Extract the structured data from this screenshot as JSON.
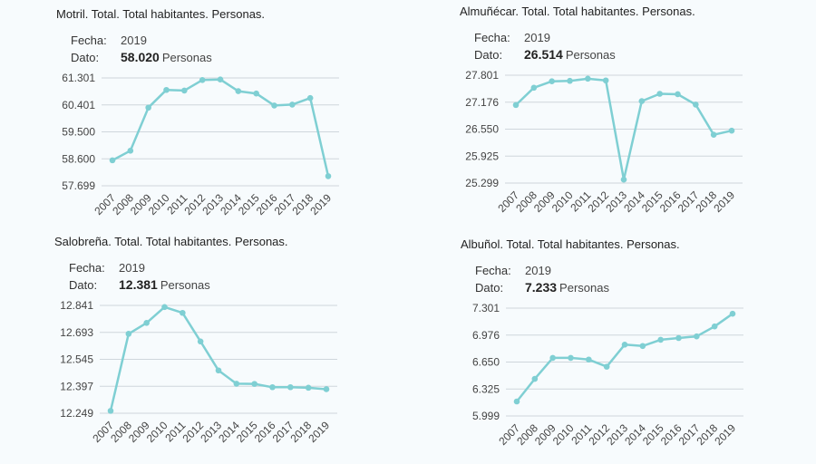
{
  "line_color": "#7fcfd3",
  "grid_color": "#cfd6dc",
  "labels": {
    "fecha": "Fecha:",
    "dato": "Dato:",
    "unit": "Personas"
  },
  "chart_data": [
    {
      "type": "line",
      "title": "Motril. Total. Total habitantes. Personas.",
      "fecha": "2019",
      "dato": "58.020",
      "x": [
        "2007",
        "2008",
        "2009",
        "2010",
        "2011",
        "2012",
        "2013",
        "2014",
        "2015",
        "2016",
        "2017",
        "2018",
        "2019"
      ],
      "values": [
        58550,
        58870,
        60310,
        60900,
        60880,
        61230,
        61250,
        60860,
        60780,
        60380,
        60410,
        60630,
        58020
      ],
      "yticks": [
        "61.301",
        "60.401",
        "59.500",
        "58.600",
        "57.699"
      ],
      "ylim": [
        57699,
        61301
      ]
    },
    {
      "type": "line",
      "title": "Almuñécar. Total. Total habitantes. Personas.",
      "fecha": "2019",
      "dato": "26.514",
      "x": [
        "2007",
        "2008",
        "2009",
        "2010",
        "2011",
        "2012",
        "2013",
        "2014",
        "2015",
        "2016",
        "2017",
        "2018",
        "2019"
      ],
      "values": [
        27110,
        27510,
        27660,
        27670,
        27720,
        27680,
        25380,
        27200,
        27370,
        27360,
        27120,
        26420,
        26514
      ],
      "yticks": [
        "27.801",
        "27.176",
        "26.550",
        "25.925",
        "25.299"
      ],
      "ylim": [
        25299,
        27801
      ]
    },
    {
      "type": "line",
      "title": "Salobreña. Total. Total habitantes. Personas.",
      "fecha": "2019",
      "dato": "12.381",
      "x": [
        "2007",
        "2008",
        "2009",
        "2010",
        "2011",
        "2012",
        "2013",
        "2014",
        "2015",
        "2016",
        "2017",
        "2018",
        "2019"
      ],
      "values": [
        12262,
        12685,
        12745,
        12832,
        12800,
        12643,
        12484,
        12411,
        12410,
        12392,
        12392,
        12389,
        12381
      ],
      "yticks": [
        "12.841",
        "12.693",
        "12.545",
        "12.397",
        "12.249"
      ],
      "ylim": [
        12249,
        12841
      ]
    },
    {
      "type": "line",
      "title": "Albuñol. Total. Total habitantes. Personas.",
      "fecha": "2019",
      "dato": "7.233",
      "x": [
        "2007",
        "2008",
        "2009",
        "2010",
        "2011",
        "2012",
        "2013",
        "2014",
        "2015",
        "2016",
        "2017",
        "2018",
        "2019"
      ],
      "values": [
        6174,
        6447,
        6700,
        6700,
        6680,
        6594,
        6860,
        6844,
        6919,
        6940,
        6960,
        7080,
        7233
      ],
      "yticks": [
        "7.301",
        "6.976",
        "6.650",
        "6.325",
        "5.999"
      ],
      "ylim": [
        5999,
        7301
      ]
    }
  ]
}
